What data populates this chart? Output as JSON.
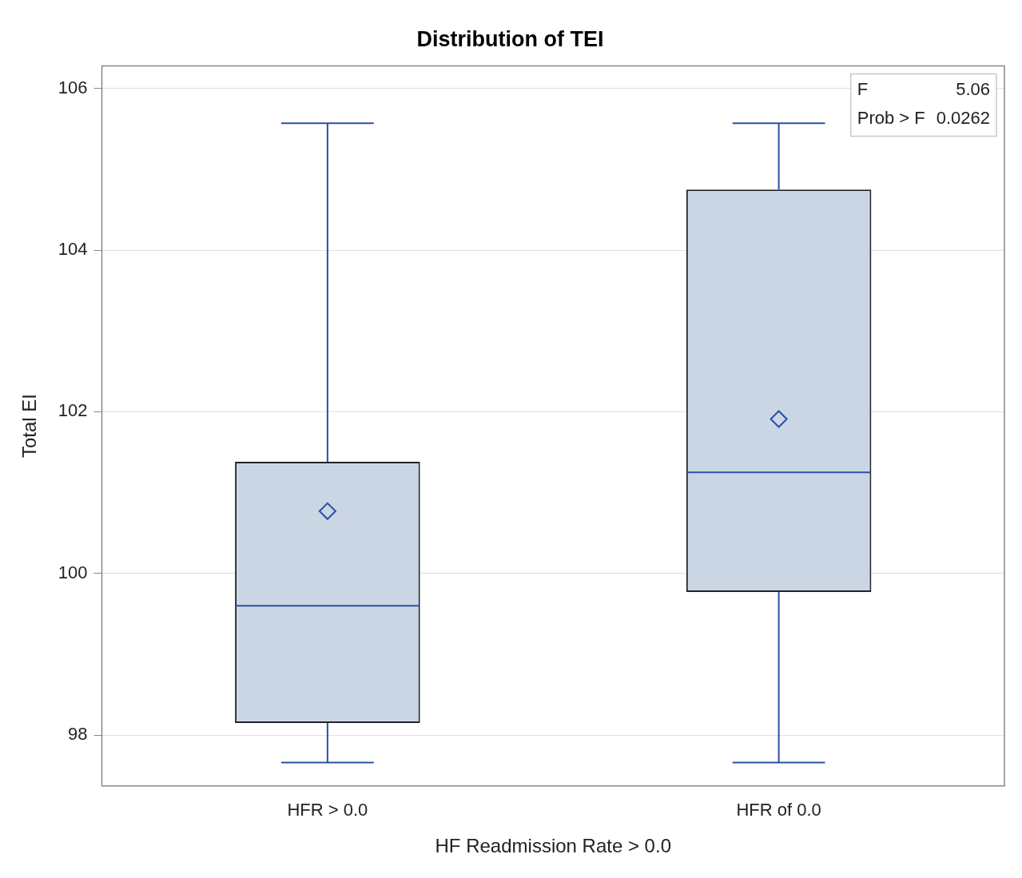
{
  "chart_data": {
    "type": "box",
    "title": "Distribution of TEI",
    "xlabel": "HF Readmission Rate > 0.0",
    "ylabel": "Total EI",
    "categories": [
      "HFR > 0.0",
      "HFR of 0.0"
    ],
    "series": [
      {
        "color": "#222222",
        "boxes": [
          {
            "low": 97.66,
            "q1": 98.15,
            "median": 99.6,
            "q3": 101.38,
            "high": 105.57,
            "mean": 100.77
          },
          {
            "low": 97.66,
            "q1": 99.77,
            "median": 101.25,
            "q3": 104.75,
            "high": 105.57,
            "mean": 101.91
          }
        ]
      }
    ],
    "ylim": [
      97.37,
      106.28
    ],
    "yticks": [
      98,
      100,
      102,
      104,
      106
    ],
    "grid": "y",
    "legend": false,
    "marker": "diamond",
    "annotations": [
      "F 5.06",
      "Prob > F 0.0262"
    ]
  }
}
